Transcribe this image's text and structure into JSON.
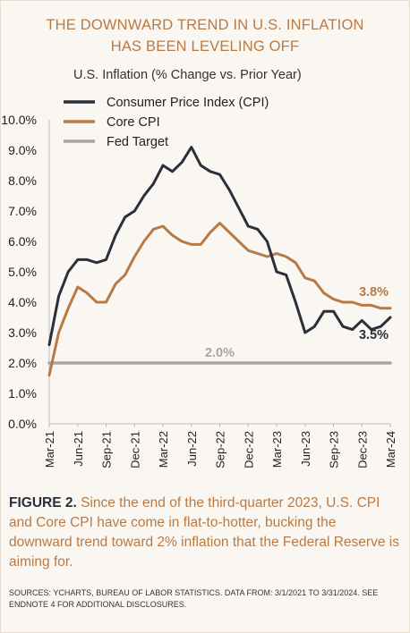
{
  "figure": {
    "title_line1": "THE DOWNWARD TREND IN U.S. INFLATION",
    "title_line2": "HAS BEEN LEVELING OFF",
    "caption_label": "FIGURE 2.",
    "caption_text": " Since the end of the third-quarter 2023, U.S. CPI and Core CPI have come in flat-to-hotter, bucking the downward trend toward 2% inflation that the Federal Reserve is aiming for.",
    "sources": "SOURCES: YCHARTS, BUREAU OF LABOR STATISTICS. DATA FROM: 3/1/2021 TO 3/31/2024. SEE ENDNOTE 4 FOR ADDITIONAL DISCLOSURES."
  },
  "colors": {
    "cpi": "#2b2f3a",
    "core": "#b87a45",
    "fed": "#a6a6a6",
    "title": "#b87a45",
    "background": "#faf7f2"
  },
  "chart_data": {
    "type": "line",
    "title": "U.S. Inflation (% Change vs. Prior Year)",
    "x": [
      "2021-03",
      "2021-04",
      "2021-05",
      "2021-06",
      "2021-07",
      "2021-08",
      "2021-09",
      "2021-10",
      "2021-11",
      "2021-12",
      "2022-01",
      "2022-02",
      "2022-03",
      "2022-04",
      "2022-05",
      "2022-06",
      "2022-07",
      "2022-08",
      "2022-09",
      "2022-10",
      "2022-11",
      "2022-12",
      "2023-01",
      "2023-02",
      "2023-03",
      "2023-04",
      "2023-05",
      "2023-06",
      "2023-07",
      "2023-08",
      "2023-09",
      "2023-10",
      "2023-11",
      "2023-12",
      "2024-01",
      "2024-02",
      "2024-03"
    ],
    "x_tick_labels": [
      "Mar-21",
      "Jun-21",
      "Sep-21",
      "Dec-21",
      "Mar-22",
      "Jun-22",
      "Sep-22",
      "Dec-22",
      "Mar-23",
      "Jun-23",
      "Sep-23",
      "Dec-23",
      "Mar-24"
    ],
    "x_tick_values": [
      "2021-03",
      "2021-06",
      "2021-09",
      "2021-12",
      "2022-03",
      "2022-06",
      "2022-09",
      "2022-12",
      "2023-03",
      "2023-06",
      "2023-09",
      "2023-12",
      "2024-03"
    ],
    "ylim": [
      0,
      10
    ],
    "y_tick_labels": [
      "0.0%",
      "1.0%",
      "2.0%",
      "3.0%",
      "4.0%",
      "5.0%",
      "6.0%",
      "7.0%",
      "8.0%",
      "9.0%",
      "10.0%"
    ],
    "grid": false,
    "legend_position": "top-left",
    "series": [
      {
        "name": "Consumer Price Index (CPI)",
        "values": [
          2.6,
          4.2,
          5.0,
          5.4,
          5.4,
          5.3,
          5.4,
          6.2,
          6.8,
          7.0,
          7.5,
          7.9,
          8.5,
          8.3,
          8.6,
          9.1,
          8.5,
          8.3,
          8.2,
          7.7,
          7.1,
          6.5,
          6.4,
          6.0,
          5.0,
          4.9,
          4.0,
          3.0,
          3.2,
          3.7,
          3.7,
          3.2,
          3.1,
          3.4,
          3.1,
          3.2,
          3.5
        ]
      },
      {
        "name": "Core CPI",
        "values": [
          1.6,
          3.0,
          3.8,
          4.5,
          4.3,
          4.0,
          4.0,
          4.6,
          4.9,
          5.5,
          6.0,
          6.4,
          6.5,
          6.2,
          6.0,
          5.9,
          5.9,
          6.3,
          6.6,
          6.3,
          6.0,
          5.7,
          5.6,
          5.5,
          5.6,
          5.5,
          5.3,
          4.8,
          4.7,
          4.3,
          4.1,
          4.0,
          4.0,
          3.9,
          3.9,
          3.8,
          3.8
        ]
      },
      {
        "name": "Fed Target",
        "values": [
          2.0,
          2.0,
          2.0,
          2.0,
          2.0,
          2.0,
          2.0,
          2.0,
          2.0,
          2.0,
          2.0,
          2.0,
          2.0,
          2.0,
          2.0,
          2.0,
          2.0,
          2.0,
          2.0,
          2.0,
          2.0,
          2.0,
          2.0,
          2.0,
          2.0,
          2.0,
          2.0,
          2.0,
          2.0,
          2.0,
          2.0,
          2.0,
          2.0,
          2.0,
          2.0,
          2.0,
          2.0
        ]
      }
    ],
    "annotations": [
      {
        "text": "2.0%",
        "series": "Fed Target",
        "index": 18
      },
      {
        "text": "3.8%",
        "series": "Core CPI",
        "index": 36
      },
      {
        "text": "3.5%",
        "series": "Consumer Price Index (CPI)",
        "index": 36
      }
    ]
  }
}
